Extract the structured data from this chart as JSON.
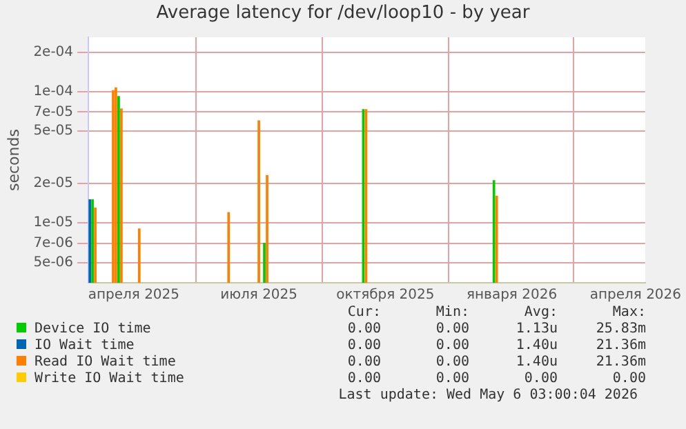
{
  "chart_data": {
    "type": "bar",
    "title": "Average latency for /dev/loop10 - by year",
    "ylabel": "seconds",
    "log": "y",
    "grid": true,
    "legend": "bottom",
    "xlim": [
      "2025-02-27",
      "2026-04-08"
    ],
    "xticks": [
      {
        "value": "2025-04-01",
        "label": "апреля 2025"
      },
      {
        "value": "2025-07-01",
        "label": "июля 2025"
      },
      {
        "value": "2025-10-01",
        "label": "октября 2025"
      },
      {
        "value": "2026-01-01",
        "label": "января 2026"
      },
      {
        "value": "2026-04-01",
        "label": "апреля 2026"
      }
    ],
    "ylim": [
      3.5e-06,
      0.00026
    ],
    "yticks": [
      {
        "value": 5e-06,
        "label": "5e-06"
      },
      {
        "value": 7e-06,
        "label": "7e-06"
      },
      {
        "value": 1e-05,
        "label": "1e-05"
      },
      {
        "value": 2e-05,
        "label": "2e-05"
      },
      {
        "value": 5e-05,
        "label": "5e-05"
      },
      {
        "value": 7e-05,
        "label": "7e-05"
      },
      {
        "value": 0.0001,
        "label": "1e-04"
      },
      {
        "value": 0.0002,
        "label": "2e-04"
      }
    ],
    "series": [
      {
        "name": "Device IO time",
        "color": "#00cc00",
        "x": [
          "2025-03-02",
          "2025-03-21",
          "2025-07-05",
          "2025-09-15",
          "2025-12-19"
        ],
        "values": [
          1.5e-05,
          9.2e-05,
          7e-06,
          7.3e-05,
          2.1e-05
        ]
      },
      {
        "name": "IO Wait time",
        "color": "#0066b3",
        "x": [
          "2025-02-28"
        ],
        "values": [
          1.5e-05
        ]
      },
      {
        "name": "Read IO Wait time",
        "color": "#ff8000",
        "x": [
          "2025-03-04",
          "2025-03-17",
          "2025-03-19",
          "2025-03-23",
          "2025-04-05",
          "2025-06-09",
          "2025-07-01",
          "2025-07-07",
          "2025-09-17",
          "2025-12-21"
        ],
        "values": [
          1.3e-05,
          0.000102,
          0.000107,
          7.4e-05,
          9e-06,
          1.2e-05,
          6e-05,
          2.3e-05,
          7.3e-05,
          1.6e-05
        ]
      },
      {
        "name": "Write IO Wait time",
        "color": "#ffcc00"
      }
    ],
    "annotations": [
      "Cur:",
      "Min:",
      "Avg:",
      "Max:",
      "0.00",
      "0.00",
      "1.13u",
      "25.83m",
      "0.00",
      "0.00",
      "1.40u",
      "21.36m",
      "0.00",
      "0.00",
      "1.40u",
      "21.36m",
      "0.00",
      "0.00",
      "0.00",
      "0.00",
      "Last update: Wed May  6 03:00:04 2026"
    ]
  }
}
